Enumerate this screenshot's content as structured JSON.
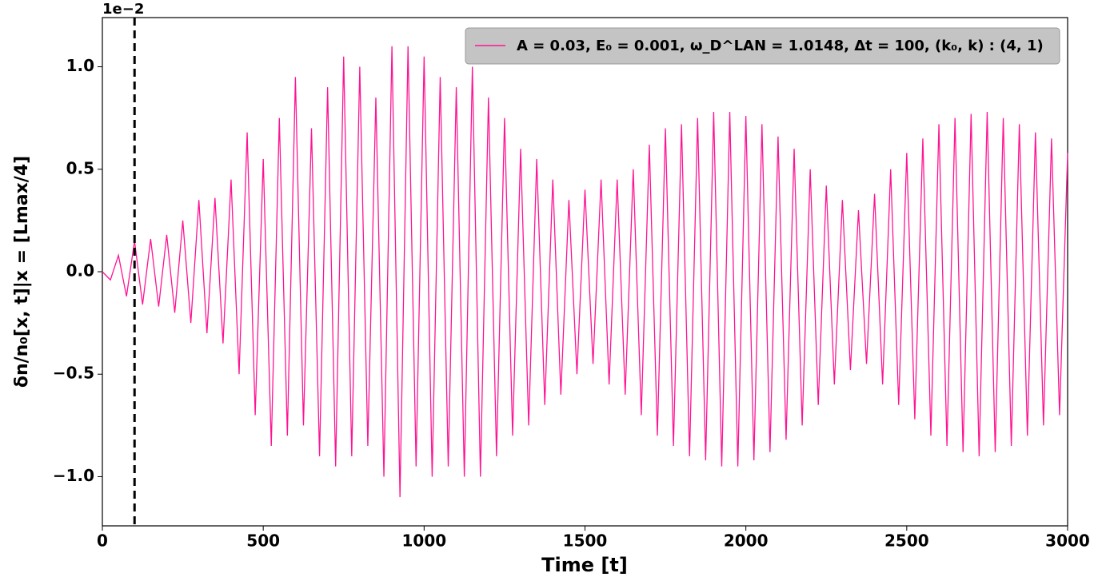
{
  "chart_data": {
    "type": "line",
    "xlabel": "Time [t]",
    "ylabel": "δn/n₀[x, t]|x = [Lmax/4]",
    "y_offset_label": "1e−2",
    "vline": 100,
    "xlim": [
      0,
      3000
    ],
    "xticks": [
      0,
      500,
      1000,
      1500,
      2000,
      2500,
      3000
    ],
    "ylim": [
      -1.24,
      1.24
    ],
    "yticks": [
      {
        "value": -1,
        "label": "−1.0"
      },
      {
        "value": -0.5,
        "label": "−0.5"
      },
      {
        "value": 0,
        "label": "0.0"
      },
      0.5,
      {
        "value": 1,
        "label": "1.0"
      }
    ],
    "legend": "upper right",
    "x": [
      0,
      25,
      50,
      75,
      100,
      125,
      150,
      175,
      200,
      225,
      250,
      275,
      300,
      325,
      350,
      375,
      400,
      425,
      450,
      475,
      500,
      525,
      550,
      575,
      600,
      625,
      650,
      675,
      700,
      725,
      750,
      775,
      800,
      825,
      850,
      875,
      900,
      925,
      950,
      975,
      1000,
      1025,
      1050,
      1075,
      1100,
      1125,
      1150,
      1175,
      1200,
      1225,
      1250,
      1275,
      1300,
      1325,
      1350,
      1375,
      1400,
      1425,
      1450,
      1475,
      1500,
      1525,
      1550,
      1575,
      1600,
      1625,
      1650,
      1675,
      1700,
      1725,
      1750,
      1775,
      1800,
      1825,
      1850,
      1875,
      1900,
      1925,
      1950,
      1975,
      2000,
      2025,
      2050,
      2075,
      2100,
      2125,
      2150,
      2175,
      2200,
      2225,
      2250,
      2275,
      2300,
      2325,
      2350,
      2375,
      2400,
      2425,
      2450,
      2475,
      2500,
      2525,
      2550,
      2575,
      2600,
      2625,
      2650,
      2675,
      2700,
      2725,
      2750,
      2775,
      2800,
      2825,
      2850,
      2875,
      2900,
      2925,
      2950,
      2975,
      3000
    ],
    "series": [
      {
        "name": "A = 0.03, E₀ = 0.001, ω_D^LAN = 1.0148, Δt = 100, (k₀, k) : (4, 1)",
        "color": "#ff1493",
        "values": [
          0,
          -0.04,
          0.08,
          -0.12,
          0.15,
          -0.16,
          0.16,
          -0.17,
          0.18,
          -0.2,
          0.25,
          -0.25,
          0.35,
          -0.3,
          0.36,
          -0.35,
          0.45,
          -0.5,
          0.68,
          -0.7,
          0.55,
          -0.85,
          0.75,
          -0.8,
          0.95,
          -0.75,
          0.7,
          -0.9,
          0.9,
          -0.95,
          1.05,
          -0.9,
          1.0,
          -0.85,
          0.85,
          -1.0,
          1.1,
          -1.1,
          1.1,
          -0.95,
          1.05,
          -1.0,
          0.95,
          -0.95,
          0.9,
          -1.0,
          1.0,
          -1.0,
          0.85,
          -0.9,
          0.75,
          -0.8,
          0.6,
          -0.75,
          0.55,
          -0.65,
          0.45,
          -0.6,
          0.35,
          -0.5,
          0.4,
          -0.45,
          0.45,
          -0.55,
          0.45,
          -0.6,
          0.5,
          -0.7,
          0.62,
          -0.8,
          0.7,
          -0.85,
          0.72,
          -0.9,
          0.75,
          -0.92,
          0.78,
          -0.95,
          0.78,
          -0.95,
          0.76,
          -0.92,
          0.72,
          -0.88,
          0.66,
          -0.82,
          0.6,
          -0.75,
          0.5,
          -0.65,
          0.42,
          -0.55,
          0.35,
          -0.48,
          0.3,
          -0.45,
          0.38,
          -0.55,
          0.5,
          -0.65,
          0.58,
          -0.72,
          0.65,
          -0.8,
          0.72,
          -0.85,
          0.75,
          -0.88,
          0.77,
          -0.9,
          0.78,
          -0.88,
          0.75,
          -0.85,
          0.72,
          -0.8,
          0.68,
          -0.75,
          0.65,
          -0.7,
          0.58
        ]
      }
    ]
  }
}
